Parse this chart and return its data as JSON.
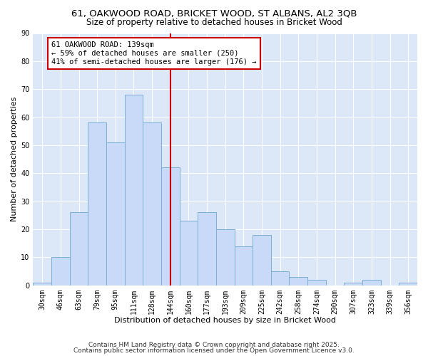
{
  "title": "61, OAKWOOD ROAD, BRICKET WOOD, ST ALBANS, AL2 3QB",
  "subtitle": "Size of property relative to detached houses in Bricket Wood",
  "xlabel": "Distribution of detached houses by size in Bricket Wood",
  "ylabel": "Number of detached properties",
  "bar_labels": [
    "30sqm",
    "46sqm",
    "63sqm",
    "79sqm",
    "95sqm",
    "111sqm",
    "128sqm",
    "144sqm",
    "160sqm",
    "177sqm",
    "193sqm",
    "209sqm",
    "225sqm",
    "242sqm",
    "258sqm",
    "274sqm",
    "290sqm",
    "307sqm",
    "323sqm",
    "339sqm",
    "356sqm"
  ],
  "bar_values": [
    1,
    10,
    26,
    58,
    51,
    68,
    58,
    42,
    23,
    26,
    20,
    14,
    18,
    5,
    3,
    2,
    0,
    1,
    2,
    0,
    1
  ],
  "bar_color": "#c9daf8",
  "bar_edgecolor": "#7bafd4",
  "vline_x_idx": 7,
  "vline_color": "#cc0000",
  "ylim": [
    0,
    90
  ],
  "yticks": [
    0,
    10,
    20,
    30,
    40,
    50,
    60,
    70,
    80,
    90
  ],
  "annotation_title": "61 OAKWOOD ROAD: 139sqm",
  "annotation_line1": "← 59% of detached houses are smaller (250)",
  "annotation_line2": "41% of semi-detached houses are larger (176) →",
  "annotation_box_facecolor": "#ffffff",
  "annotation_box_edgecolor": "#cc0000",
  "footer1": "Contains HM Land Registry data © Crown copyright and database right 2025.",
  "footer2": "Contains public sector information licensed under the Open Government Licence v3.0.",
  "bg_color": "#dce8f8",
  "fig_bg_color": "#ffffff",
  "title_fontsize": 9.5,
  "subtitle_fontsize": 8.5,
  "axis_label_fontsize": 8,
  "tick_fontsize": 7,
  "annotation_fontsize": 7.5,
  "footer_fontsize": 6.5
}
